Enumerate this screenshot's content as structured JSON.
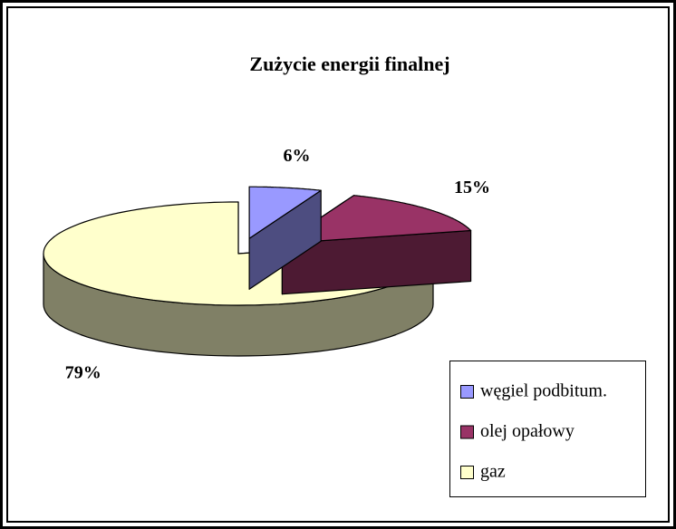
{
  "chart_data": {
    "type": "pie3d",
    "title": "Zużycie energii finalnej",
    "categories": [
      "węgiel podbitum.",
      "olej opałowy",
      "gaz"
    ],
    "values": [
      6,
      15,
      79
    ],
    "value_labels": [
      "6%",
      "15%",
      "79%"
    ],
    "colors": [
      "#9999ff",
      "#993366",
      "#ffffcc"
    ],
    "legend": "bottom-right"
  }
}
